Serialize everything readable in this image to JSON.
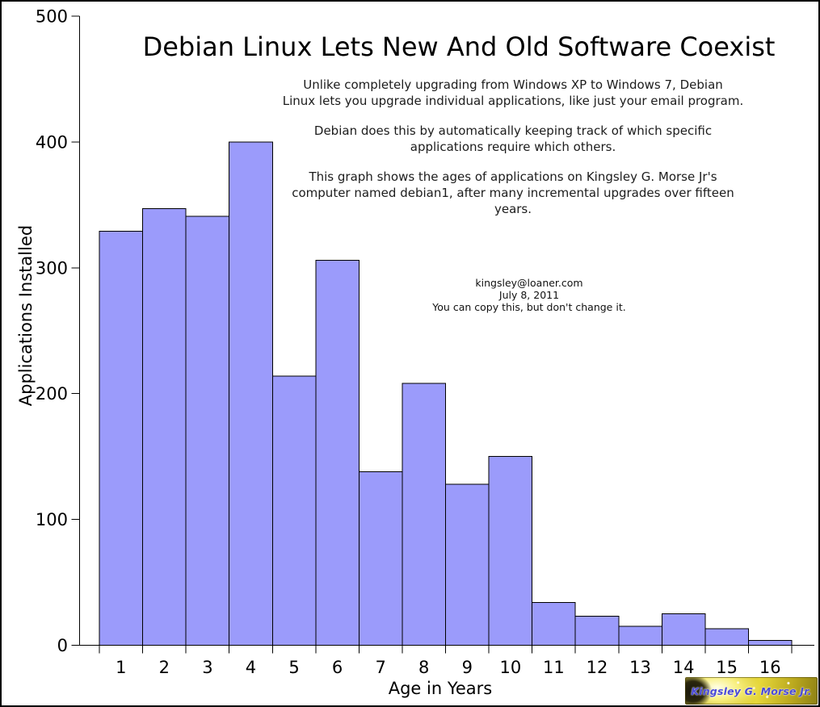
{
  "frame": {
    "background": "#ffffff",
    "border_color": "#000000"
  },
  "chart_data": {
    "type": "bar",
    "title": "Debian Linux Lets New And Old Software Coexist",
    "xlabel": "Age in Years",
    "ylabel": "Applications Installed",
    "categories": [
      "1",
      "2",
      "3",
      "4",
      "5",
      "6",
      "7",
      "8",
      "9",
      "10",
      "11",
      "12",
      "13",
      "14",
      "15",
      "16"
    ],
    "values": [
      329,
      347,
      341,
      400,
      214,
      306,
      138,
      208,
      128,
      150,
      34,
      23,
      15,
      25,
      13,
      4
    ],
    "ylim": [
      0,
      500
    ],
    "yticks": [
      0,
      100,
      200,
      300,
      400,
      500
    ],
    "bar_color": "#9b9bfb",
    "bar_border_color": "#000000",
    "axis_color": "#000000",
    "grid": false,
    "legend": "none"
  },
  "annotations": {
    "para1": "Unlike completely upgrading from Windows XP to Windows 7, Debian\nLinux lets you upgrade individual applications, like just your email program.",
    "para2": "Debian does this by automatically keeping track of which specific\napplications require which others.",
    "para3": "This graph shows the ages of applications on Kingsley G. Morse Jr's\ncomputer named debian1, after many incremental upgrades over fifteen\nyears."
  },
  "credit": {
    "email": "kingsley@loaner.com",
    "date": "July 8, 2011",
    "license": "You can copy this, but don't change it."
  },
  "signature": {
    "text": "Kingsley G. Morse Jr.",
    "text_color": "#4a4ad8"
  }
}
